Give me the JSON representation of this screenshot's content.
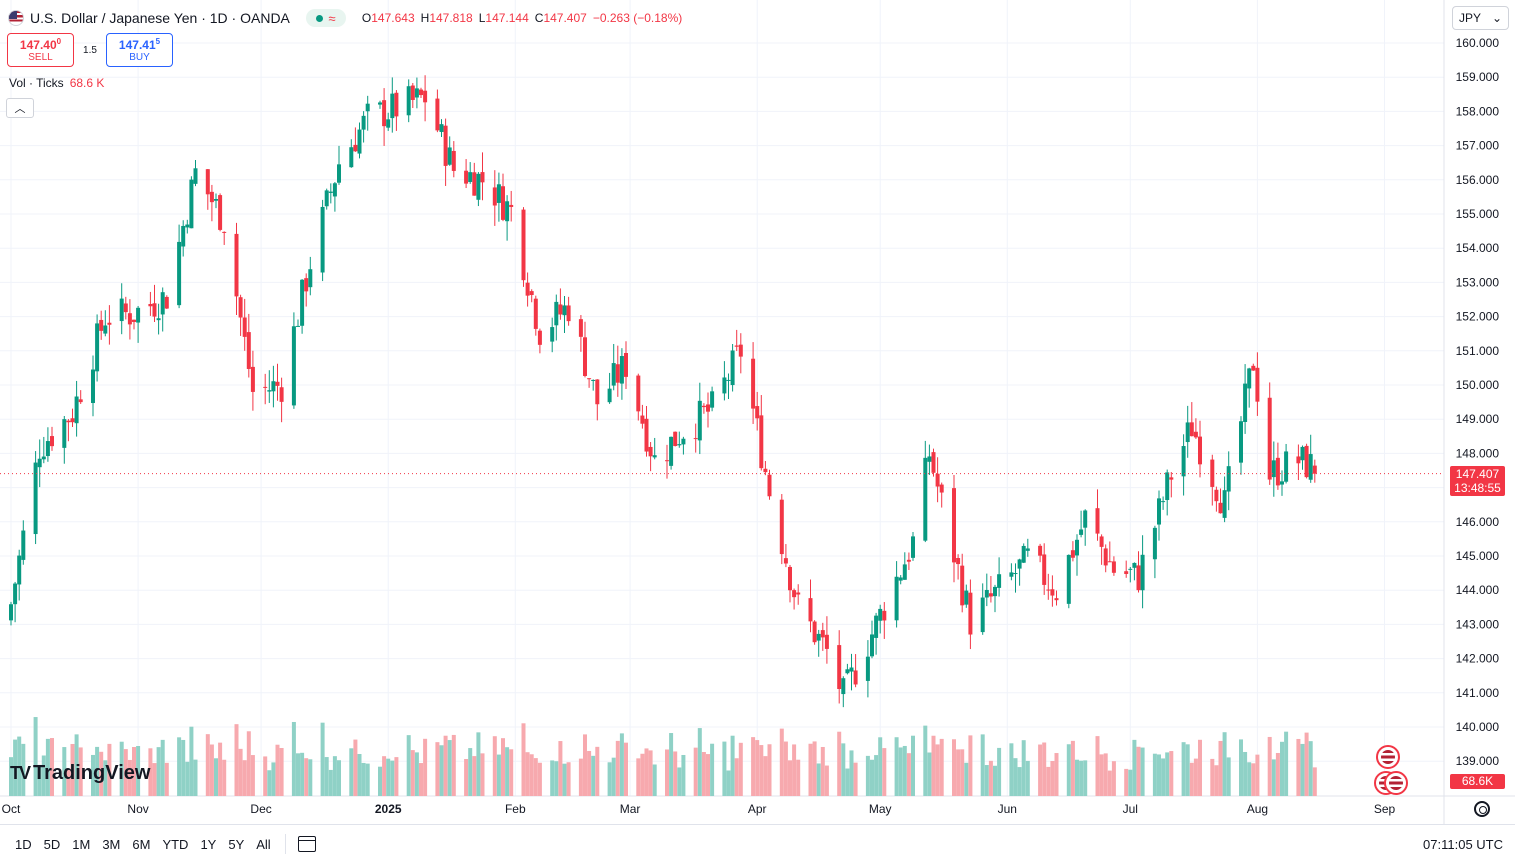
{
  "header": {
    "title": "U.S. Dollar / Japanese Yen · 1D · OANDA",
    "ohlc": [
      {
        "k": "O",
        "v": "147.643"
      },
      {
        "k": "H",
        "v": "147.818"
      },
      {
        "k": "L",
        "v": "147.144"
      },
      {
        "k": "C",
        "v": "147.407"
      },
      {
        "k": "",
        "v": "−0.263 (−0.18%)"
      }
    ]
  },
  "trade": {
    "sell_price_main": "147.40",
    "sell_price_sup": "0",
    "sell_label": "SELL",
    "spread": "1.5",
    "buy_price_main": "147.41",
    "buy_price_sup": "5",
    "buy_label": "BUY"
  },
  "volume_indicator": {
    "label": "Vol · Ticks",
    "value": "68.6 K"
  },
  "currency": {
    "label": "JPY"
  },
  "logo": {
    "text": "TradingView"
  },
  "price_labels": {
    "last_price": "147.407",
    "countdown": "13:48:55",
    "volume": "68.6K"
  },
  "bottom_bar": {
    "ranges": [
      "1D",
      "5D",
      "1M",
      "3M",
      "6M",
      "YTD",
      "1Y",
      "5Y",
      "All"
    ],
    "clock": "07:11:05 UTC"
  },
  "colors": {
    "up": "#089981",
    "down": "#f23645",
    "up_vol": "#8fd1c6",
    "down_vol": "#f7a9ae",
    "grid": "#f0f3fa"
  },
  "chart_data": {
    "type": "candlestick",
    "title": "U.S. Dollar / Japanese Yen · 1D · OANDA",
    "ylim": [
      138.5,
      160.5
    ],
    "y_ticks": [
      "160.000",
      "159.000",
      "158.000",
      "157.000",
      "156.000",
      "155.000",
      "154.000",
      "153.000",
      "152.000",
      "151.000",
      "150.000",
      "149.000",
      "148.000",
      "147.000",
      "146.000",
      "145.000",
      "144.000",
      "143.000",
      "142.000",
      "141.000",
      "140.000",
      "139.000"
    ],
    "x_ticks": [
      {
        "label": "Oct",
        "date": "2024-10-01"
      },
      {
        "label": "Nov",
        "date": "2024-11-01"
      },
      {
        "label": "Dec",
        "date": "2024-12-01"
      },
      {
        "label": "2025",
        "date": "2025-01-01"
      },
      {
        "label": "Feb",
        "date": "2025-02-01"
      },
      {
        "label": "Mar",
        "date": "2025-03-01"
      },
      {
        "label": "Apr",
        "date": "2025-04-01"
      },
      {
        "label": "May",
        "date": "2025-05-01"
      },
      {
        "label": "Jun",
        "date": "2025-06-01"
      },
      {
        "label": "Jul",
        "date": "2025-07-01"
      },
      {
        "label": "Aug",
        "date": "2025-08-01"
      },
      {
        "label": "Sep",
        "date": "2025-09-01"
      }
    ],
    "last_price": 147.407,
    "monthly_path": [
      {
        "date": "2024-10-01",
        "close": 143.6
      },
      {
        "date": "2024-10-08",
        "close": 148.2
      },
      {
        "date": "2024-10-16",
        "close": 149.2
      },
      {
        "date": "2024-10-24",
        "close": 152.0
      },
      {
        "date": "2024-10-31",
        "close": 152.1
      },
      {
        "date": "2024-11-08",
        "close": 152.6
      },
      {
        "date": "2024-11-15",
        "close": 156.2
      },
      {
        "date": "2024-11-22",
        "close": 154.8
      },
      {
        "date": "2024-11-29",
        "close": 149.8
      },
      {
        "date": "2024-12-06",
        "close": 150.0
      },
      {
        "date": "2024-12-13",
        "close": 153.6
      },
      {
        "date": "2024-12-20",
        "close": 156.5
      },
      {
        "date": "2024-12-27",
        "close": 157.8
      },
      {
        "date": "2025-01-10",
        "close": 158.4
      },
      {
        "date": "2025-01-17",
        "close": 156.3
      },
      {
        "date": "2025-01-24",
        "close": 156.0
      },
      {
        "date": "2025-01-31",
        "close": 155.1
      },
      {
        "date": "2025-02-07",
        "close": 151.6
      },
      {
        "date": "2025-02-14",
        "close": 152.3
      },
      {
        "date": "2025-02-21",
        "close": 149.5
      },
      {
        "date": "2025-02-28",
        "close": 150.6
      },
      {
        "date": "2025-03-07",
        "close": 147.8
      },
      {
        "date": "2025-03-14",
        "close": 148.7
      },
      {
        "date": "2025-03-21",
        "close": 149.3
      },
      {
        "date": "2025-03-28",
        "close": 151.0
      },
      {
        "date": "2025-04-04",
        "close": 146.9
      },
      {
        "date": "2025-04-11",
        "close": 143.5
      },
      {
        "date": "2025-04-18",
        "close": 142.2
      },
      {
        "date": "2025-04-22",
        "close": 140.9
      },
      {
        "date": "2025-04-30",
        "close": 143.0
      },
      {
        "date": "2025-05-09",
        "close": 145.4
      },
      {
        "date": "2025-05-13",
        "close": 148.0
      },
      {
        "date": "2025-05-23",
        "close": 143.1
      },
      {
        "date": "2025-05-30",
        "close": 144.0
      },
      {
        "date": "2025-06-06",
        "close": 144.9
      },
      {
        "date": "2025-06-13",
        "close": 144.0
      },
      {
        "date": "2025-06-20",
        "close": 146.1
      },
      {
        "date": "2025-06-27",
        "close": 144.6
      },
      {
        "date": "2025-07-03",
        "close": 144.4
      },
      {
        "date": "2025-07-11",
        "close": 147.4
      },
      {
        "date": "2025-07-16",
        "close": 148.8
      },
      {
        "date": "2025-07-24",
        "close": 146.5
      },
      {
        "date": "2025-07-31",
        "close": 150.7
      },
      {
        "date": "2025-08-04",
        "close": 147.4
      },
      {
        "date": "2025-08-11",
        "close": 147.8
      },
      {
        "date": "2025-08-18",
        "close": 147.4
      }
    ],
    "volume_ylim": [
      0,
      230000
    ]
  }
}
